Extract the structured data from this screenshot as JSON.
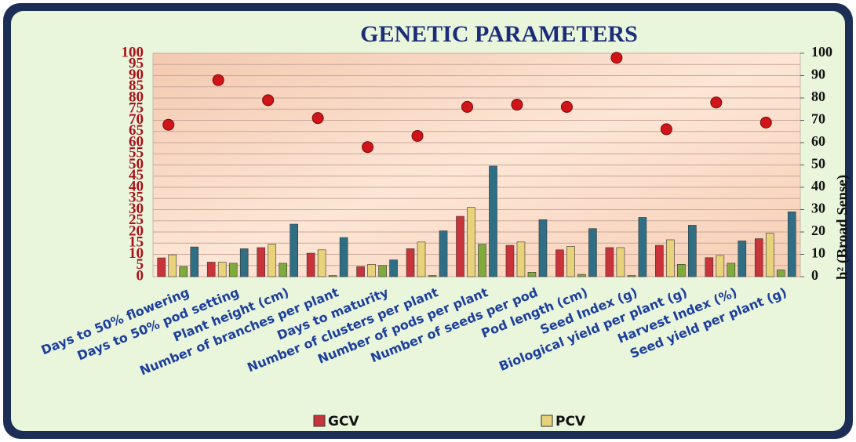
{
  "chart_data": {
    "type": "bar",
    "title": "GENETIC PARAMETERS",
    "categories": [
      "Days to 50% flowering",
      "Days to 50% pod setting",
      "Plant height (cm)",
      "Number of branches per plant",
      "Days to maturity",
      "Number of clusters per plant",
      "Number of pods per plant",
      "Number of seeds per pod",
      "Pod length (cm)",
      "Seed Index (g)",
      "Biological yield per plant (g)",
      "Harvest Index (%)",
      "Seed yield per plant (g)"
    ],
    "series": [
      {
        "name": "GCV",
        "color": "#c8343a",
        "values": [
          8.4,
          6.5,
          13,
          10.5,
          4.5,
          12.5,
          27,
          14,
          12,
          13,
          14,
          8.5,
          17
        ]
      },
      {
        "name": "PCV",
        "color": "#e8d27a",
        "values": [
          9.8,
          6.5,
          14.5,
          12,
          5.5,
          15.5,
          31,
          15.5,
          13.5,
          13,
          16.5,
          9.5,
          19.5
        ]
      },
      {
        "color": "#7faa3c",
        "values": [
          4.5,
          6,
          6,
          0.5,
          5,
          0.5,
          14.5,
          2,
          1,
          0.5,
          5.5,
          6,
          3
        ]
      },
      {
        "color": "#2f6f86",
        "values": [
          13.3,
          12.5,
          23.5,
          17.5,
          7.5,
          20.5,
          49.5,
          25.5,
          21.5,
          26.5,
          23,
          16,
          29
        ]
      },
      {
        "type": "scatter",
        "axis": "y2",
        "color": "#d0141a",
        "values": [
          68,
          88,
          79,
          71,
          58,
          63,
          76,
          77,
          76,
          98,
          66,
          78,
          69
        ]
      }
    ],
    "ylim": [
      0,
      100
    ],
    "yticks": [
      0,
      5,
      10,
      15,
      20,
      25,
      30,
      35,
      40,
      45,
      50,
      55,
      60,
      65,
      70,
      75,
      80,
      85,
      90,
      95,
      100
    ],
    "y2lim": [
      0,
      100
    ],
    "y2ticks": [
      0,
      10,
      20,
      30,
      40,
      50,
      60,
      70,
      80,
      90,
      100
    ],
    "y2label": "h² (Broad Sense)",
    "grid": true
  }
}
